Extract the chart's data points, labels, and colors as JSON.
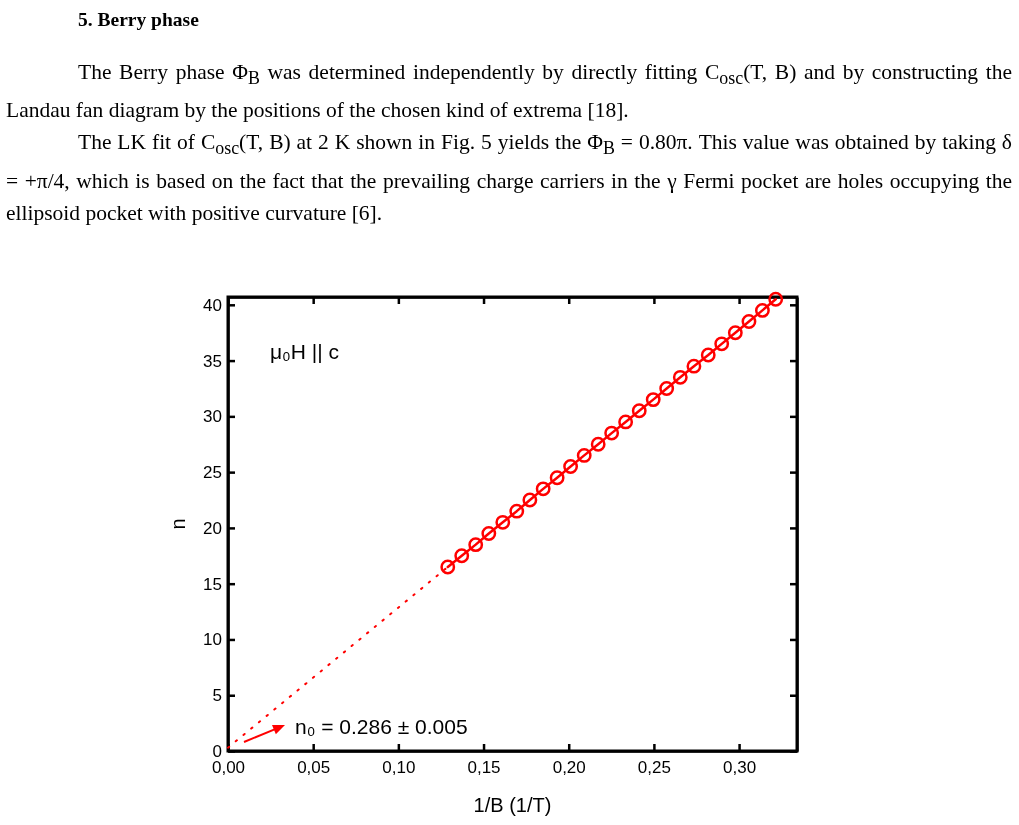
{
  "chart_data": {
    "type": "line",
    "title": "5. Berry phase",
    "xlabel": "1/B (1/T)",
    "ylabel": "n",
    "xlim": [
      0,
      0.334
    ],
    "ylim": [
      0,
      40.7
    ],
    "xticks": [
      {
        "value": 0,
        "label": "0,00"
      },
      {
        "value": 0.05,
        "label": "0,05"
      },
      {
        "value": 0.1,
        "label": "0,10"
      },
      {
        "value": 0.15,
        "label": "0,15"
      },
      {
        "value": 0.2,
        "label": "0,20"
      },
      {
        "value": 0.25,
        "label": "0,25"
      },
      {
        "value": 0.3,
        "label": "0,30"
      }
    ],
    "yticks": [
      0,
      5,
      10,
      15,
      20,
      25,
      30,
      35,
      40
    ],
    "grid": false,
    "annotations": [
      "The Berry phase Φ$_{B}$ was determined independently by directly fitting C$_{osc}$(T, B) and by constructing the Landau fan diagram by the positions of the chosen kind of extrema [18].",
      "The LK fit of C$_{osc}$(T, B) at 2 K shown in Fig. 5 yields the Φ$_{B}$ = 0.80π. This value was obtained by taking δ = +π/4, which is based on the fact that the prevailing charge carriers in the γ Fermi pocket are holes occupying the ellipsoid pocket with positive curvature [6].",
      "μ₀H || c",
      "n₀ = 0.286 ± 0.005"
    ],
    "series": [
      {
        "marker": "circle",
        "line_style": "solid",
        "color": "#ff0000",
        "x": [
          0.129,
          0.1372,
          0.1454,
          0.1531,
          0.1613,
          0.1695,
          0.1772,
          0.185,
          0.1932,
          0.2011,
          0.2091,
          0.2173,
          0.2252,
          0.2334,
          0.2414,
          0.2496,
          0.2575,
          0.2655,
          0.2735,
          0.2819,
          0.2898,
          0.2978,
          0.3058,
          0.3137,
          0.3215
        ],
        "values": [
          16.5,
          17.5,
          18.5,
          19.5,
          20.5,
          21.5,
          22.5,
          23.5,
          24.5,
          25.5,
          26.5,
          27.5,
          28.5,
          29.5,
          30.5,
          31.5,
          32.5,
          33.5,
          34.5,
          35.5,
          36.5,
          37.5,
          38.5,
          39.5,
          40.5
        ]
      },
      {
        "marker": "none",
        "line_style": "dotted",
        "color": "#ff0000",
        "x": [
          0,
          0.129
        ],
        "values": [
          0.3,
          16.5
        ]
      }
    ]
  }
}
